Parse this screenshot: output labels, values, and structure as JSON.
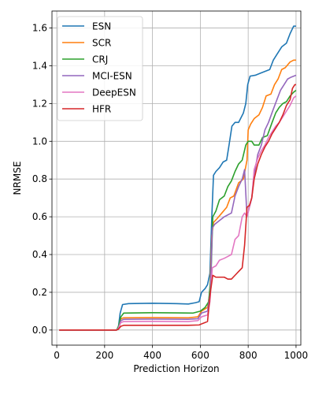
{
  "chart_data": {
    "type": "line",
    "title": "",
    "xlabel": "Prediction Horizon",
    "ylabel": "NRMSE",
    "xlim": [
      -20,
      1020
    ],
    "ylim": [
      -0.08,
      1.69
    ],
    "xticks": [
      0,
      200,
      400,
      600,
      800,
      1000
    ],
    "yticks": [
      0.0,
      0.2,
      0.4,
      0.6,
      0.8,
      1.0,
      1.2,
      1.4,
      1.6
    ],
    "grid": true,
    "legend_position": "upper-left",
    "series": [
      {
        "name": "ESN",
        "color": "#1f77b4",
        "points": [
          [
            10,
            0.0
          ],
          [
            250,
            0.0
          ],
          [
            258,
            0.02
          ],
          [
            265,
            0.09
          ],
          [
            275,
            0.135
          ],
          [
            300,
            0.14
          ],
          [
            400,
            0.142
          ],
          [
            500,
            0.14
          ],
          [
            550,
            0.138
          ],
          [
            580,
            0.145
          ],
          [
            595,
            0.15
          ],
          [
            605,
            0.2
          ],
          [
            620,
            0.22
          ],
          [
            630,
            0.24
          ],
          [
            640,
            0.3
          ],
          [
            648,
            0.6
          ],
          [
            655,
            0.82
          ],
          [
            665,
            0.84
          ],
          [
            680,
            0.86
          ],
          [
            695,
            0.89
          ],
          [
            710,
            0.9
          ],
          [
            720,
            0.98
          ],
          [
            732,
            1.08
          ],
          [
            745,
            1.1
          ],
          [
            760,
            1.1
          ],
          [
            780,
            1.15
          ],
          [
            790,
            1.2
          ],
          [
            798,
            1.3
          ],
          [
            808,
            1.345
          ],
          [
            830,
            1.35
          ],
          [
            850,
            1.36
          ],
          [
            870,
            1.37
          ],
          [
            890,
            1.38
          ],
          [
            905,
            1.43
          ],
          [
            920,
            1.46
          ],
          [
            940,
            1.5
          ],
          [
            960,
            1.52
          ],
          [
            975,
            1.57
          ],
          [
            990,
            1.61
          ],
          [
            1000,
            1.61
          ]
        ]
      },
      {
        "name": "SCR",
        "color": "#ff7f0e",
        "points": [
          [
            10,
            0.0
          ],
          [
            250,
            0.0
          ],
          [
            258,
            0.01
          ],
          [
            268,
            0.06
          ],
          [
            280,
            0.065
          ],
          [
            400,
            0.066
          ],
          [
            550,
            0.065
          ],
          [
            590,
            0.07
          ],
          [
            605,
            0.1
          ],
          [
            630,
            0.12
          ],
          [
            640,
            0.2
          ],
          [
            648,
            0.5
          ],
          [
            655,
            0.57
          ],
          [
            670,
            0.59
          ],
          [
            690,
            0.62
          ],
          [
            710,
            0.65
          ],
          [
            725,
            0.7
          ],
          [
            740,
            0.71
          ],
          [
            760,
            0.78
          ],
          [
            780,
            0.8
          ],
          [
            795,
            0.9
          ],
          [
            800,
            1.06
          ],
          [
            810,
            1.09
          ],
          [
            825,
            1.12
          ],
          [
            845,
            1.14
          ],
          [
            860,
            1.18
          ],
          [
            875,
            1.24
          ],
          [
            895,
            1.25
          ],
          [
            910,
            1.3
          ],
          [
            925,
            1.33
          ],
          [
            940,
            1.38
          ],
          [
            955,
            1.39
          ],
          [
            975,
            1.42
          ],
          [
            990,
            1.43
          ],
          [
            1000,
            1.43
          ]
        ]
      },
      {
        "name": "CRJ",
        "color": "#2ca02c",
        "points": [
          [
            10,
            0.0
          ],
          [
            250,
            0.0
          ],
          [
            258,
            0.02
          ],
          [
            268,
            0.07
          ],
          [
            280,
            0.09
          ],
          [
            400,
            0.092
          ],
          [
            500,
            0.091
          ],
          [
            570,
            0.09
          ],
          [
            600,
            0.1
          ],
          [
            620,
            0.12
          ],
          [
            635,
            0.15
          ],
          [
            645,
            0.3
          ],
          [
            652,
            0.6
          ],
          [
            665,
            0.63
          ],
          [
            680,
            0.69
          ],
          [
            700,
            0.71
          ],
          [
            715,
            0.76
          ],
          [
            730,
            0.79
          ],
          [
            745,
            0.84
          ],
          [
            760,
            0.88
          ],
          [
            775,
            0.9
          ],
          [
            790,
            0.98
          ],
          [
            800,
            1.0
          ],
          [
            815,
            1.0
          ],
          [
            825,
            0.98
          ],
          [
            845,
            0.98
          ],
          [
            860,
            1.02
          ],
          [
            880,
            1.03
          ],
          [
            900,
            1.1
          ],
          [
            915,
            1.15
          ],
          [
            930,
            1.18
          ],
          [
            945,
            1.2
          ],
          [
            960,
            1.21
          ],
          [
            975,
            1.24
          ],
          [
            990,
            1.26
          ],
          [
            1000,
            1.27
          ]
        ]
      },
      {
        "name": "MCI-ESN",
        "color": "#9467bd",
        "points": [
          [
            10,
            0.0
          ],
          [
            250,
            0.0
          ],
          [
            258,
            0.01
          ],
          [
            268,
            0.05
          ],
          [
            280,
            0.057
          ],
          [
            400,
            0.058
          ],
          [
            550,
            0.057
          ],
          [
            590,
            0.06
          ],
          [
            605,
            0.09
          ],
          [
            630,
            0.1
          ],
          [
            642,
            0.2
          ],
          [
            650,
            0.54
          ],
          [
            660,
            0.56
          ],
          [
            680,
            0.58
          ],
          [
            700,
            0.6
          ],
          [
            715,
            0.61
          ],
          [
            730,
            0.62
          ],
          [
            745,
            0.71
          ],
          [
            760,
            0.76
          ],
          [
            775,
            0.8
          ],
          [
            785,
            0.85
          ],
          [
            795,
            0.6
          ],
          [
            805,
            0.65
          ],
          [
            815,
            0.7
          ],
          [
            825,
            0.82
          ],
          [
            840,
            0.93
          ],
          [
            855,
            0.98
          ],
          [
            870,
            1.06
          ],
          [
            885,
            1.1
          ],
          [
            905,
            1.17
          ],
          [
            920,
            1.22
          ],
          [
            935,
            1.27
          ],
          [
            950,
            1.3
          ],
          [
            965,
            1.33
          ],
          [
            980,
            1.34
          ],
          [
            1000,
            1.35
          ]
        ]
      },
      {
        "name": "DeepESN",
        "color": "#e377c2",
        "points": [
          [
            10,
            0.0
          ],
          [
            250,
            0.0
          ],
          [
            258,
            0.01
          ],
          [
            268,
            0.04
          ],
          [
            280,
            0.045
          ],
          [
            400,
            0.046
          ],
          [
            550,
            0.045
          ],
          [
            590,
            0.05
          ],
          [
            605,
            0.07
          ],
          [
            630,
            0.08
          ],
          [
            640,
            0.15
          ],
          [
            650,
            0.33
          ],
          [
            665,
            0.34
          ],
          [
            680,
            0.37
          ],
          [
            700,
            0.38
          ],
          [
            715,
            0.39
          ],
          [
            730,
            0.4
          ],
          [
            745,
            0.48
          ],
          [
            760,
            0.5
          ],
          [
            775,
            0.6
          ],
          [
            785,
            0.62
          ],
          [
            795,
            0.6
          ],
          [
            805,
            0.65
          ],
          [
            815,
            0.7
          ],
          [
            825,
            0.85
          ],
          [
            840,
            0.91
          ],
          [
            855,
            0.95
          ],
          [
            870,
            0.98
          ],
          [
            885,
            1.02
          ],
          [
            900,
            1.05
          ],
          [
            915,
            1.08
          ],
          [
            930,
            1.1
          ],
          [
            945,
            1.13
          ],
          [
            960,
            1.16
          ],
          [
            975,
            1.19
          ],
          [
            990,
            1.23
          ],
          [
            1000,
            1.24
          ]
        ]
      },
      {
        "name": "HFR",
        "color": "#d62728",
        "points": [
          [
            10,
            0.0
          ],
          [
            250,
            0.0
          ],
          [
            258,
            0.005
          ],
          [
            268,
            0.02
          ],
          [
            280,
            0.025
          ],
          [
            400,
            0.025
          ],
          [
            550,
            0.025
          ],
          [
            595,
            0.027
          ],
          [
            610,
            0.035
          ],
          [
            630,
            0.045
          ],
          [
            642,
            0.2
          ],
          [
            652,
            0.29
          ],
          [
            665,
            0.28
          ],
          [
            680,
            0.28
          ],
          [
            700,
            0.28
          ],
          [
            715,
            0.27
          ],
          [
            730,
            0.27
          ],
          [
            745,
            0.29
          ],
          [
            760,
            0.31
          ],
          [
            775,
            0.33
          ],
          [
            785,
            0.45
          ],
          [
            795,
            0.65
          ],
          [
            805,
            0.66
          ],
          [
            815,
            0.7
          ],
          [
            825,
            0.8
          ],
          [
            840,
            0.88
          ],
          [
            855,
            0.93
          ],
          [
            870,
            0.97
          ],
          [
            885,
            1.0
          ],
          [
            900,
            1.04
          ],
          [
            915,
            1.07
          ],
          [
            930,
            1.1
          ],
          [
            945,
            1.14
          ],
          [
            960,
            1.19
          ],
          [
            975,
            1.22
          ],
          [
            985,
            1.28
          ],
          [
            995,
            1.3
          ],
          [
            1000,
            1.3
          ]
        ]
      }
    ]
  }
}
